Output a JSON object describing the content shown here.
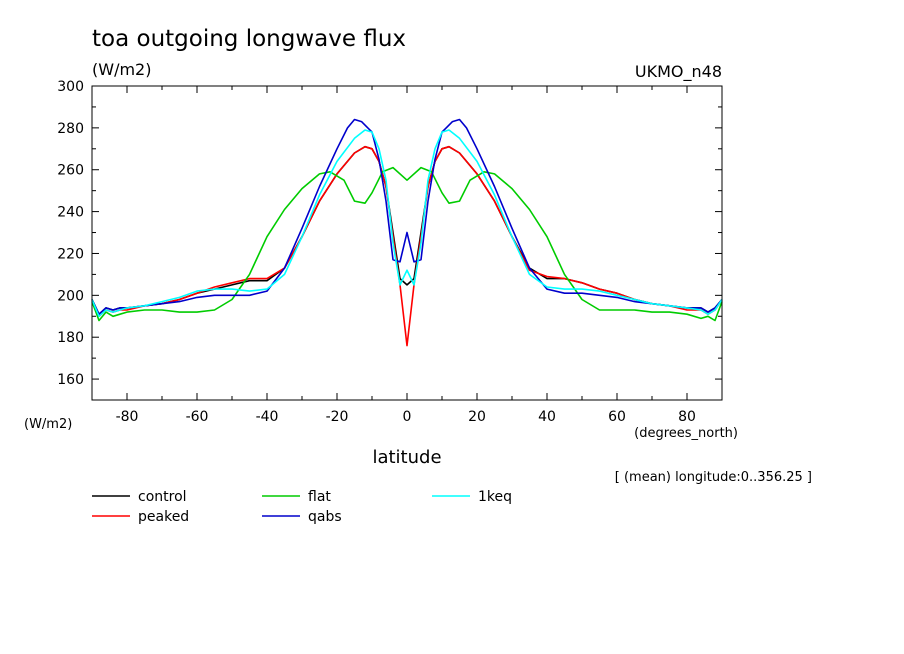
{
  "chart_data": {
    "type": "line",
    "title": "toa outgoing longwave flux",
    "units_label": "(W/m2)",
    "model_label": "UKMO_n48",
    "xlabel": "latitude",
    "x_units": "(degrees_north)",
    "y_units": "(W/m2)",
    "footnote": "[ (mean) longitude:0..356.25 ]",
    "xlim": [
      -90,
      90
    ],
    "ylim": [
      150,
      300
    ],
    "x_ticks": [
      -80,
      -60,
      -40,
      -20,
      0,
      20,
      40,
      60,
      80
    ],
    "x_tick_labels": [
      "-80",
      "-60",
      "-40",
      "-20",
      "0",
      "20",
      "40",
      "60",
      "80"
    ],
    "y_ticks": [
      160,
      180,
      200,
      220,
      240,
      260,
      280,
      300
    ],
    "y_tick_labels": [
      "160",
      "180",
      "200",
      "220",
      "240",
      "260",
      "280",
      "300"
    ],
    "grid": false,
    "legend_position": "bottom",
    "series": [
      {
        "name": "control",
        "color": "#000000",
        "x": [
          -90,
          -88,
          -86,
          -84,
          -82,
          -80,
          -75,
          -70,
          -65,
          -60,
          -55,
          -50,
          -45,
          -40,
          -35,
          -30,
          -25,
          -20,
          -15,
          -12,
          -10,
          -8,
          -6,
          -4,
          -2,
          0,
          2,
          4,
          6,
          8,
          10,
          12,
          15,
          20,
          25,
          30,
          35,
          40,
          45,
          50,
          55,
          60,
          65,
          70,
          75,
          80,
          84,
          86,
          88,
          90
        ],
        "y": [
          198,
          191,
          194,
          193,
          194,
          194,
          195,
          196,
          198,
          201,
          203,
          205,
          207,
          207,
          213,
          228,
          245,
          258,
          268,
          271,
          270,
          264,
          252,
          230,
          208,
          205,
          208,
          230,
          252,
          264,
          270,
          271,
          268,
          258,
          245,
          228,
          213,
          208,
          208,
          206,
          203,
          201,
          198,
          196,
          195,
          194,
          194,
          192,
          194,
          198
        ]
      },
      {
        "name": "peaked",
        "color": "#ff0000",
        "x": [
          -90,
          -88,
          -86,
          -84,
          -82,
          -80,
          -75,
          -70,
          -65,
          -60,
          -55,
          -50,
          -45,
          -40,
          -35,
          -30,
          -25,
          -20,
          -15,
          -12,
          -10,
          -8,
          -6,
          -4,
          -2,
          0,
          2,
          4,
          6,
          8,
          10,
          12,
          15,
          20,
          25,
          30,
          35,
          40,
          45,
          50,
          55,
          60,
          65,
          70,
          75,
          80,
          84,
          86,
          88,
          90
        ],
        "y": [
          198,
          190,
          193,
          192,
          193,
          193,
          195,
          196,
          198,
          201,
          204,
          206,
          208,
          208,
          213,
          228,
          245,
          258,
          268,
          271,
          270,
          264,
          252,
          228,
          205,
          176,
          205,
          228,
          252,
          264,
          270,
          271,
          268,
          258,
          245,
          228,
          212,
          209,
          208,
          206,
          203,
          201,
          198,
          196,
          195,
          193,
          193,
          191,
          193,
          198
        ]
      },
      {
        "name": "flat",
        "color": "#00cc00",
        "x": [
          -90,
          -88,
          -86,
          -84,
          -82,
          -80,
          -75,
          -70,
          -65,
          -60,
          -55,
          -50,
          -45,
          -40,
          -35,
          -30,
          -25,
          -22,
          -18,
          -15,
          -12,
          -10,
          -7,
          -4,
          0,
          4,
          7,
          10,
          12,
          15,
          18,
          22,
          25,
          30,
          35,
          40,
          45,
          50,
          55,
          60,
          65,
          70,
          75,
          80,
          84,
          86,
          88,
          90
        ],
        "y": [
          197,
          188,
          192,
          190,
          191,
          192,
          193,
          193,
          192,
          192,
          193,
          198,
          210,
          228,
          241,
          251,
          258,
          259,
          255,
          245,
          244,
          249,
          259,
          261,
          255,
          261,
          259,
          249,
          244,
          245,
          255,
          259,
          258,
          251,
          241,
          228,
          210,
          198,
          193,
          193,
          193,
          192,
          192,
          191,
          189,
          190,
          188,
          197
        ]
      },
      {
        "name": "qabs",
        "color": "#0000cc",
        "x": [
          -90,
          -88,
          -86,
          -84,
          -82,
          -80,
          -75,
          -70,
          -65,
          -60,
          -55,
          -50,
          -45,
          -40,
          -35,
          -30,
          -25,
          -20,
          -17,
          -15,
          -13,
          -10,
          -8,
          -6,
          -4,
          -2,
          0,
          2,
          4,
          6,
          8,
          10,
          13,
          15,
          17,
          20,
          25,
          30,
          35,
          40,
          45,
          50,
          55,
          60,
          65,
          70,
          75,
          80,
          84,
          86,
          88,
          90
        ],
        "y": [
          198,
          191,
          194,
          193,
          194,
          194,
          195,
          196,
          197,
          199,
          200,
          200,
          200,
          202,
          213,
          232,
          252,
          270,
          280,
          284,
          283,
          278,
          265,
          245,
          217,
          216,
          230,
          216,
          217,
          245,
          265,
          278,
          283,
          284,
          280,
          270,
          252,
          232,
          213,
          203,
          201,
          201,
          200,
          199,
          197,
          196,
          195,
          194,
          194,
          192,
          194,
          198
        ]
      },
      {
        "name": "1keq",
        "color": "#00ffff",
        "x": [
          -90,
          -88,
          -86,
          -84,
          -82,
          -80,
          -75,
          -70,
          -65,
          -60,
          -55,
          -50,
          -45,
          -40,
          -35,
          -30,
          -25,
          -20,
          -15,
          -12,
          -10,
          -8,
          -6,
          -4,
          -2,
          0,
          2,
          4,
          6,
          8,
          10,
          12,
          15,
          20,
          25,
          30,
          35,
          40,
          45,
          50,
          55,
          60,
          65,
          70,
          75,
          80,
          84,
          86,
          88,
          90
        ],
        "y": [
          198,
          190,
          193,
          192,
          193,
          194,
          195,
          197,
          199,
          202,
          203,
          203,
          202,
          203,
          210,
          228,
          248,
          264,
          275,
          279,
          278,
          270,
          255,
          225,
          205,
          212,
          205,
          225,
          255,
          270,
          278,
          279,
          275,
          264,
          248,
          228,
          210,
          204,
          203,
          203,
          202,
          200,
          198,
          196,
          195,
          194,
          193,
          191,
          193,
          198
        ]
      }
    ]
  }
}
